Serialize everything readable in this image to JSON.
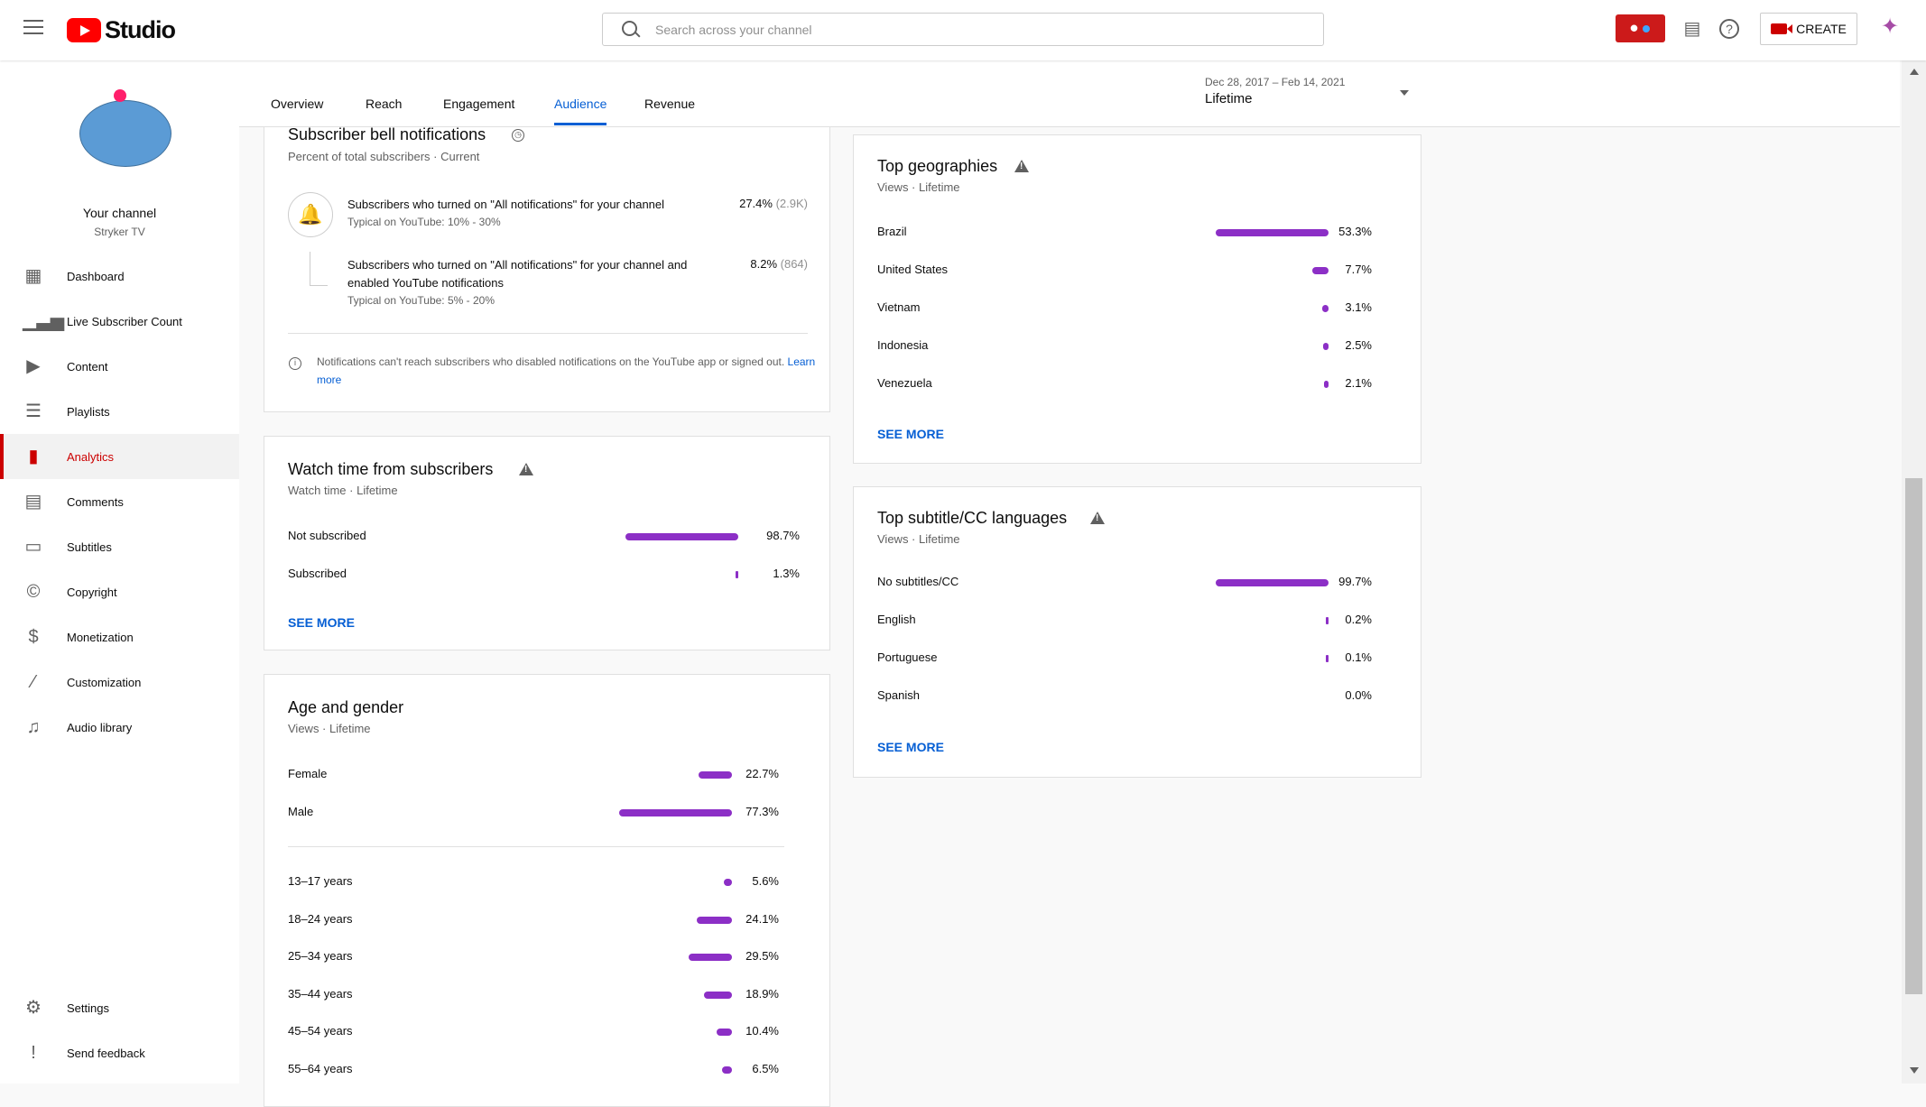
{
  "header": {
    "logo_text": "Studio",
    "search_placeholder": "Search across your channel",
    "create_label": "CREATE"
  },
  "channel": {
    "name": "Your channel",
    "handle": "Stryker TV"
  },
  "sidebar": {
    "items": [
      {
        "label": "Dashboard",
        "icon": "dashboard-icon",
        "glyph": "▦"
      },
      {
        "label": "Live Subscriber Count",
        "icon": "signal-icon",
        "glyph": "▁▃▅"
      },
      {
        "label": "Content",
        "icon": "video-library-icon",
        "glyph": "▶"
      },
      {
        "label": "Playlists",
        "icon": "playlist-icon",
        "glyph": "☰"
      },
      {
        "label": "Analytics",
        "icon": "analytics-icon",
        "glyph": "▮"
      },
      {
        "label": "Comments",
        "icon": "comment-icon",
        "glyph": "▤"
      },
      {
        "label": "Subtitles",
        "icon": "subtitles-icon",
        "glyph": "▭"
      },
      {
        "label": "Copyright",
        "icon": "copyright-icon",
        "glyph": "©"
      },
      {
        "label": "Monetization",
        "icon": "dollar-icon",
        "glyph": "$"
      },
      {
        "label": "Customization",
        "icon": "magic-wand-icon",
        "glyph": "⁄"
      },
      {
        "label": "Audio library",
        "icon": "audio-library-icon",
        "glyph": "♫"
      }
    ],
    "bottom": [
      {
        "label": "Settings",
        "icon": "gear-icon",
        "glyph": "⚙"
      },
      {
        "label": "Send feedback",
        "icon": "feedback-icon",
        "glyph": "!"
      }
    ]
  },
  "tabs": [
    "Overview",
    "Reach",
    "Engagement",
    "Audience",
    "Revenue"
  ],
  "active_tab": "Audience",
  "date_range": {
    "range": "Dec 28, 2017 – Feb 14, 2021",
    "label": "Lifetime"
  },
  "bell_card": {
    "title": "Subscriber bell notifications",
    "subtitle": "Percent of total subscribers · Current",
    "row1_text": "Subscribers who turned on \"All notifications\" for your channel",
    "row1_typical": "Typical on YouTube: 10% - 30%",
    "row1_value": "27.4%",
    "row1_count": "(2.9K)",
    "row2_text": "Subscribers who turned on \"All notifications\" for your channel and enabled YouTube notifications",
    "row2_typical": "Typical on YouTube: 5% - 20%",
    "row2_value": "8.2%",
    "row2_count": "(864)",
    "note": "Notifications can't reach subscribers who disabled notifications on the YouTube app or signed out.",
    "learn_more": "Learn more"
  },
  "watch_card": {
    "title": "Watch time from subscribers",
    "subtitle": "Watch time · Lifetime",
    "rows": [
      {
        "label": "Not subscribed",
        "value": "98.7%",
        "pct": 98.7
      },
      {
        "label": "Subscribed",
        "value": "1.3%",
        "pct": 1.3
      }
    ],
    "see_more": "SEE MORE"
  },
  "age_card": {
    "title": "Age and gender",
    "subtitle": "Views · Lifetime",
    "gender": [
      {
        "label": "Female",
        "value": "22.7%",
        "pct": 22.7
      },
      {
        "label": "Male",
        "value": "77.3%",
        "pct": 77.3
      }
    ],
    "ages": [
      {
        "label": "13–17 years",
        "value": "5.6%",
        "pct": 5.6
      },
      {
        "label": "18–24 years",
        "value": "24.1%",
        "pct": 24.1
      },
      {
        "label": "25–34 years",
        "value": "29.5%",
        "pct": 29.5
      },
      {
        "label": "35–44 years",
        "value": "18.9%",
        "pct": 18.9
      },
      {
        "label": "45–54 years",
        "value": "10.4%",
        "pct": 10.4
      },
      {
        "label": "55–64 years",
        "value": "6.5%",
        "pct": 6.5
      }
    ]
  },
  "geo_card": {
    "title": "Top geographies",
    "subtitle": "Views · Lifetime",
    "rows": [
      {
        "label": "Brazil",
        "value": "53.3%",
        "pct": 53.3
      },
      {
        "label": "United States",
        "value": "7.7%",
        "pct": 7.7
      },
      {
        "label": "Vietnam",
        "value": "3.1%",
        "pct": 3.1
      },
      {
        "label": "Indonesia",
        "value": "2.5%",
        "pct": 2.5
      },
      {
        "label": "Venezuela",
        "value": "2.1%",
        "pct": 2.1
      }
    ],
    "see_more": "SEE MORE"
  },
  "lang_card": {
    "title": "Top subtitle/CC languages",
    "subtitle": "Views · Lifetime",
    "rows": [
      {
        "label": "No subtitles/CC",
        "value": "99.7%",
        "pct": 99.7
      },
      {
        "label": "English",
        "value": "0.2%",
        "pct": 0.2
      },
      {
        "label": "Portuguese",
        "value": "0.1%",
        "pct": 0.1
      },
      {
        "label": "Spanish",
        "value": "0.0%",
        "pct": 0.0
      }
    ],
    "see_more": "SEE MORE"
  },
  "colors": {
    "bar": "#8c2fc6",
    "accent": "#065fd4",
    "brand_red": "#cc0000"
  }
}
